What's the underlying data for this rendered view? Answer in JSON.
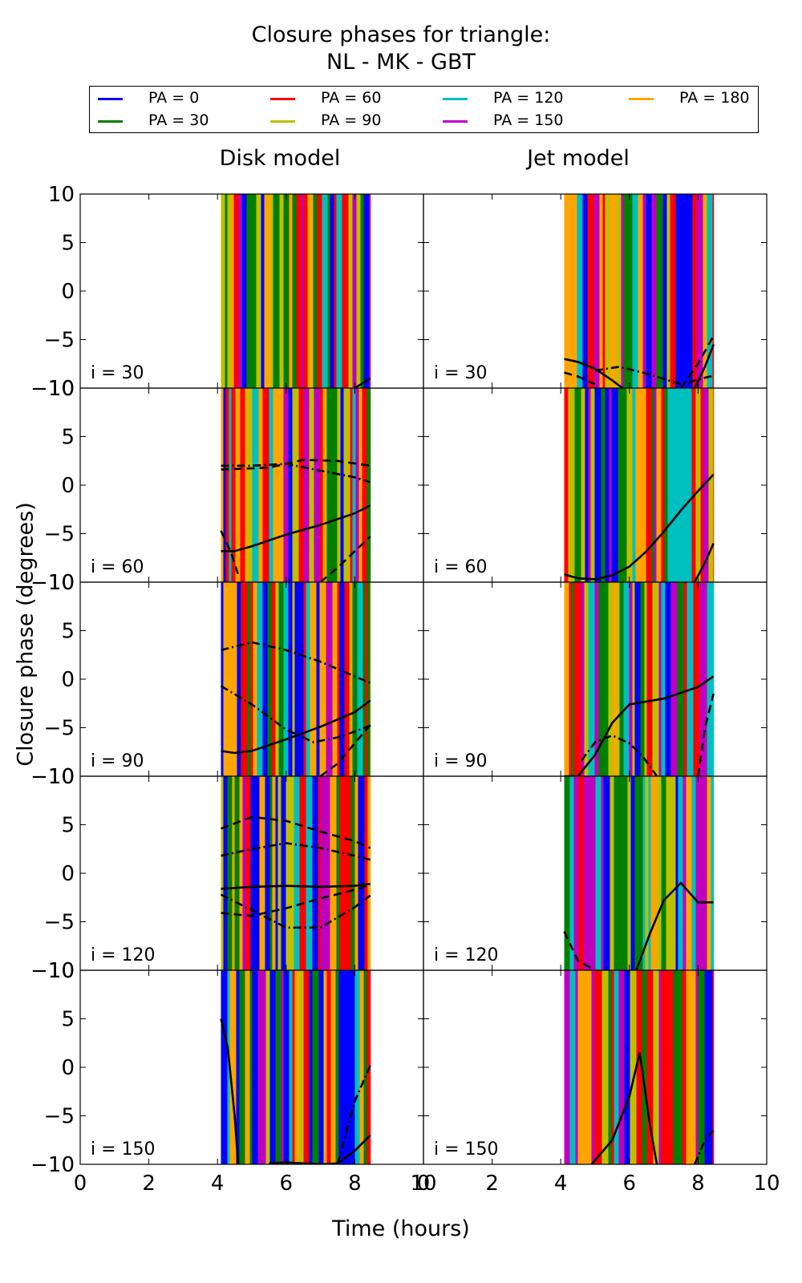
{
  "figure": {
    "title_line1": "Closure phases for triangle:",
    "title_line2": "NL - MK - GBT",
    "column_titles": [
      "Disk model",
      "Jet model"
    ],
    "xlabel": "Time (hours)",
    "ylabel": "Closure phase (degrees)"
  },
  "legend": {
    "placement": "top, above panels",
    "items": [
      {
        "label": "PA = 0",
        "color": "#0000ff"
      },
      {
        "label": "PA = 30",
        "color": "#008000"
      },
      {
        "label": "PA = 60",
        "color": "#ff0000"
      },
      {
        "label": "PA = 90",
        "color": "#bfbf00"
      },
      {
        "label": "PA = 120",
        "color": "#00bfbf"
      },
      {
        "label": "PA = 150",
        "color": "#bf00bf"
      },
      {
        "label": "PA = 180",
        "color": "#ffa500"
      }
    ]
  },
  "chart_data": {
    "type": "line",
    "layout": "5 rows x 2 columns of panels",
    "xlim": [
      0,
      10
    ],
    "ylim": [
      -10,
      10
    ],
    "x_ticks": [
      "0",
      "2",
      "4",
      "6",
      "8",
      "10"
    ],
    "y_ticks": [
      "10",
      "5",
      "0",
      "−5",
      "−10"
    ],
    "row_labels": [
      "i = 30",
      "i = 60",
      "i = 90",
      "i = 120",
      "i = 150"
    ],
    "colored_band_x_range": [
      4.1,
      8.45
    ],
    "black_line_styles": [
      "solid",
      "dashed",
      "dashdot"
    ],
    "panels": [
      {
        "model": "Disk model",
        "inclination": "i = 30",
        "black_lines": [
          {
            "style": "solid",
            "x": [
              8.0,
              8.45
            ],
            "y": [
              -10.0,
              -9.0
            ]
          }
        ]
      },
      {
        "model": "Jet model",
        "inclination": "i = 30",
        "black_lines": [
          {
            "style": "solid",
            "x": [
              4.1,
              4.5,
              5.0,
              5.5,
              5.8
            ],
            "y": [
              -7.0,
              -7.3,
              -8.0,
              -9.2,
              -10.0
            ]
          },
          {
            "style": "dashed",
            "x": [
              7.5,
              8.0,
              8.45
            ],
            "y": [
              -10.0,
              -7.5,
              -4.6
            ]
          },
          {
            "style": "dashed",
            "x": [
              4.1,
              4.5,
              5.0
            ],
            "y": [
              -8.4,
              -8.8,
              -9.6
            ]
          },
          {
            "style": "dashdot",
            "x": [
              5.0,
              5.7,
              6.5,
              7.5,
              8.45
            ],
            "y": [
              -8.2,
              -7.8,
              -8.5,
              -9.6,
              -8.7
            ]
          },
          {
            "style": "solid",
            "x": [
              7.9,
              8.2,
              8.45
            ],
            "y": [
              -10.0,
              -7.8,
              -5.5
            ]
          }
        ]
      },
      {
        "model": "Disk model",
        "inclination": "i = 60",
        "black_lines": [
          {
            "style": "solid",
            "x": [
              4.1,
              4.5,
              5.0,
              6.0,
              7.0,
              8.0,
              8.45
            ],
            "y": [
              -6.8,
              -6.8,
              -6.3,
              -5.1,
              -4.1,
              -2.9,
              -2.1
            ]
          },
          {
            "style": "dashed",
            "x": [
              7.0,
              7.5,
              8.0,
              8.45
            ],
            "y": [
              -10.0,
              -8.5,
              -6.8,
              -5.3
            ]
          },
          {
            "style": "dashed",
            "x": [
              4.1,
              4.4,
              4.6
            ],
            "y": [
              -4.7,
              -7.0,
              -9.2
            ]
          },
          {
            "style": "dashdot",
            "x": [
              4.1,
              5.0,
              6.0,
              7.0,
              8.0,
              8.45
            ],
            "y": [
              2.0,
              2.0,
              2.2,
              1.5,
              0.8,
              0.3
            ]
          },
          {
            "style": "dashed",
            "x": [
              4.1,
              5.5,
              6.5,
              7.5,
              8.45
            ],
            "y": [
              1.6,
              1.8,
              2.6,
              2.5,
              2.0
            ]
          }
        ]
      },
      {
        "model": "Jet model",
        "inclination": "i = 60",
        "black_lines": [
          {
            "style": "solid",
            "x": [
              4.1,
              4.5,
              5.0,
              5.5,
              6.0,
              6.5,
              7.0,
              7.5,
              8.0,
              8.45
            ],
            "y": [
              -9.2,
              -9.6,
              -9.7,
              -9.3,
              -8.4,
              -6.8,
              -4.8,
              -2.6,
              -0.6,
              1.1
            ]
          },
          {
            "style": "solid",
            "x": [
              7.9,
              8.2,
              8.45
            ],
            "y": [
              -10.0,
              -8.0,
              -6.0
            ]
          }
        ]
      },
      {
        "model": "Disk model",
        "inclination": "i = 90",
        "black_lines": [
          {
            "style": "solid",
            "x": [
              4.1,
              4.5,
              5.0,
              6.0,
              7.0,
              8.0,
              8.45
            ],
            "y": [
              -7.4,
              -7.6,
              -7.4,
              -6.2,
              -4.9,
              -3.4,
              -2.2
            ]
          },
          {
            "style": "dashed",
            "x": [
              7.0,
              7.5,
              8.0,
              8.45
            ],
            "y": [
              -10.0,
              -8.7,
              -6.6,
              -4.7
            ]
          },
          {
            "style": "dashdot",
            "x": [
              4.1,
              5.0,
              6.0,
              6.8,
              7.5,
              8.0,
              8.45
            ],
            "y": [
              -0.7,
              -2.6,
              -5.2,
              -6.5,
              -6.0,
              -5.4,
              -4.8
            ]
          },
          {
            "style": "dashdot",
            "x": [
              4.1,
              5.0,
              6.0,
              7.0,
              8.0,
              8.45
            ],
            "y": [
              3.0,
              3.8,
              3.0,
              1.8,
              0.3,
              -0.4
            ]
          }
        ]
      },
      {
        "model": "Jet model",
        "inclination": "i = 90",
        "black_lines": [
          {
            "style": "solid",
            "x": [
              4.1,
              4.5,
              5.0,
              5.5,
              6.0,
              7.0,
              8.0,
              8.45
            ],
            "y": [
              -10.0,
              -10.0,
              -7.8,
              -4.5,
              -2.6,
              -2.0,
              -0.8,
              0.3
            ]
          },
          {
            "style": "dashdot",
            "x": [
              4.6,
              5.0,
              5.5,
              6.0,
              6.4,
              6.8
            ],
            "y": [
              -8.4,
              -6.5,
              -5.8,
              -6.6,
              -8.0,
              -10.0
            ]
          },
          {
            "style": "dashed",
            "x": [
              8.0,
              8.2,
              8.45
            ],
            "y": [
              -10.0,
              -5.0,
              -1.5
            ]
          }
        ]
      },
      {
        "model": "Disk model",
        "inclination": "i = 120",
        "black_lines": [
          {
            "style": "solid",
            "x": [
              4.1,
              5.0,
              6.0,
              7.0,
              8.0,
              8.45
            ],
            "y": [
              -1.6,
              -1.4,
              -1.3,
              -1.4,
              -1.3,
              -1.1
            ]
          },
          {
            "style": "dashed",
            "x": [
              4.1,
              5.0,
              6.0,
              7.0,
              8.0,
              8.45
            ],
            "y": [
              -4.1,
              -4.4,
              -3.6,
              -2.6,
              -1.7,
              -1.2
            ]
          },
          {
            "style": "dashdot",
            "x": [
              4.1,
              5.0,
              6.0,
              7.0,
              8.0,
              8.45
            ],
            "y": [
              -2.2,
              -3.8,
              -5.6,
              -5.6,
              -3.5,
              -2.3
            ]
          },
          {
            "style": "dashdot",
            "x": [
              4.1,
              5.0,
              6.0,
              7.0,
              8.0,
              8.45
            ],
            "y": [
              1.8,
              2.5,
              3.1,
              2.6,
              1.8,
              1.4
            ]
          },
          {
            "style": "dashed",
            "x": [
              4.1,
              5.0,
              6.0,
              7.0,
              8.0,
              8.45
            ],
            "y": [
              4.6,
              5.8,
              5.4,
              4.3,
              3.3,
              2.6
            ]
          }
        ]
      },
      {
        "model": "Jet model",
        "inclination": "i = 120",
        "black_lines": [
          {
            "style": "solid",
            "x": [
              6.2,
              6.6,
              7.0,
              7.5,
              8.0,
              8.45
            ],
            "y": [
              -10.0,
              -6.2,
              -2.8,
              -1.0,
              -3.0,
              -3.0
            ]
          },
          {
            "style": "dashed",
            "x": [
              4.1,
              4.5,
              5.0
            ],
            "y": [
              -6.0,
              -9.0,
              -10.0
            ]
          }
        ]
      },
      {
        "model": "Disk model",
        "inclination": "i = 150",
        "black_lines": [
          {
            "style": "solid",
            "x": [
              4.1,
              4.3,
              4.5,
              4.6
            ],
            "y": [
              5.0,
              2.0,
              -5.0,
              -10.0
            ]
          },
          {
            "style": "solid",
            "x": [
              5.5,
              6.0,
              7.0,
              7.5,
              8.0,
              8.45
            ],
            "y": [
              -9.9,
              -9.8,
              -10.0,
              -9.9,
              -8.6,
              -7.0
            ]
          },
          {
            "style": "dashdot",
            "x": [
              7.5,
              8.0,
              8.45
            ],
            "y": [
              -10.0,
              -3.5,
              0.2
            ]
          }
        ]
      },
      {
        "model": "Jet model",
        "inclination": "i = 150",
        "black_lines": [
          {
            "style": "solid",
            "x": [
              4.9,
              5.5,
              6.0,
              6.3,
              6.6,
              6.8
            ],
            "y": [
              -10.0,
              -7.5,
              -3.0,
              1.5,
              -6.0,
              -10.0
            ]
          },
          {
            "style": "dashdot",
            "x": [
              7.9,
              8.2,
              8.45
            ],
            "y": [
              -10.0,
              -7.5,
              -6.5
            ]
          }
        ]
      }
    ]
  }
}
